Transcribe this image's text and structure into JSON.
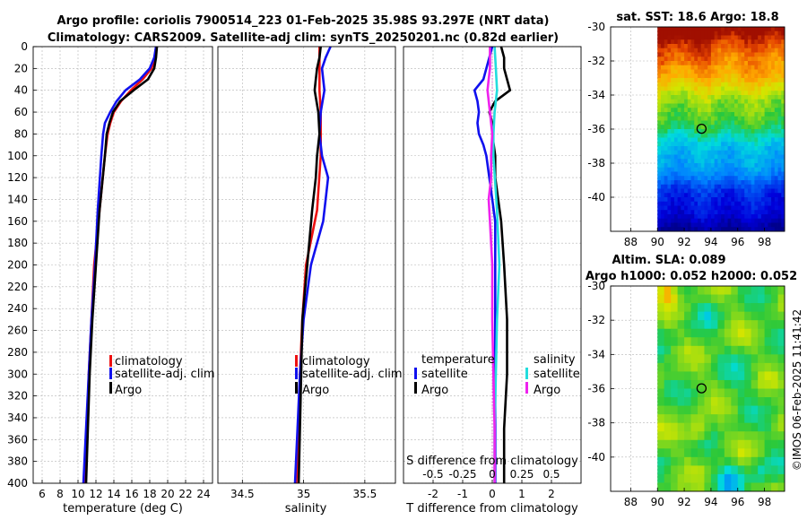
{
  "header": {
    "line1": "Argo profile: coriolis 7900514_223 01-Feb-2025 35.98S 93.297E (NRT data)",
    "line2": "Climatology: CARS2009. Satellite-adj clim: synTS_20250201.nc (0.82d earlier)"
  },
  "colors": {
    "climatology": "#ee1111",
    "satellite": "#1010ee",
    "argo": "#000000",
    "sal_satellite": "#22dddd",
    "sal_argo": "#ee22ee"
  },
  "chart_data": [
    {
      "id": "temperature",
      "type": "line",
      "xlabel": "temperature (deg C)",
      "ylabel": "",
      "xlim": [
        5,
        25
      ],
      "ylim": [
        400,
        0
      ],
      "x_ticks": [
        "6",
        "8",
        "10",
        "12",
        "14",
        "16",
        "18",
        "20",
        "22",
        "24"
      ],
      "y_ticks": [
        "0",
        "20",
        "40",
        "60",
        "80",
        "100",
        "120",
        "140",
        "160",
        "180",
        "200",
        "220",
        "240",
        "260",
        "280",
        "300",
        "320",
        "340",
        "360",
        "380",
        "400"
      ],
      "series": [
        {
          "name": "climatology",
          "color": "#ee1111",
          "depth": [
            0,
            10,
            20,
            30,
            40,
            50,
            60,
            70,
            80,
            100,
            150,
            200,
            250,
            300,
            350,
            400
          ],
          "values": [
            18.8,
            18.6,
            18.2,
            17.2,
            15.9,
            14.8,
            14.0,
            13.6,
            13.3,
            13.0,
            12.4,
            11.8,
            11.5,
            11.2,
            11.0,
            10.8
          ]
        },
        {
          "name": "satellite-adj. clim",
          "color": "#1010ee",
          "depth": [
            0,
            10,
            20,
            30,
            40,
            50,
            60,
            70,
            80,
            100,
            150,
            200,
            250,
            300,
            350,
            400
          ],
          "values": [
            18.7,
            18.5,
            18.0,
            16.9,
            15.3,
            14.3,
            13.6,
            13.0,
            12.8,
            12.6,
            12.2,
            11.9,
            11.5,
            11.2,
            10.9,
            10.6
          ]
        },
        {
          "name": "Argo",
          "color": "#000000",
          "depth": [
            0,
            10,
            20,
            30,
            40,
            50,
            60,
            70,
            80,
            100,
            150,
            200,
            250,
            300,
            350,
            400
          ],
          "values": [
            18.8,
            18.7,
            18.5,
            17.8,
            16.2,
            14.7,
            13.9,
            13.5,
            13.2,
            13.0,
            12.4,
            12.0,
            11.6,
            11.3,
            11.1,
            10.9
          ]
        }
      ],
      "legend": [
        "climatology",
        "satellite-adj. clim",
        "Argo"
      ]
    },
    {
      "id": "salinity",
      "type": "line",
      "xlabel": "salinity",
      "ylabel": "",
      "xlim": [
        34.3,
        35.75
      ],
      "ylim": [
        400,
        0
      ],
      "x_ticks": [
        "34.5",
        "35",
        "35.5"
      ],
      "series": [
        {
          "name": "climatology",
          "color": "#ee1111",
          "depth": [
            0,
            20,
            40,
            60,
            80,
            100,
            150,
            200,
            250,
            300,
            350,
            400
          ],
          "values": [
            35.13,
            35.13,
            35.13,
            35.14,
            35.14,
            35.14,
            35.11,
            35.02,
            34.99,
            34.97,
            34.96,
            34.94
          ]
        },
        {
          "name": "satellite-adj. clim",
          "color": "#1010ee",
          "depth": [
            0,
            10,
            20,
            40,
            60,
            80,
            100,
            120,
            140,
            160,
            200,
            250,
            300,
            350,
            400
          ],
          "values": [
            35.22,
            35.18,
            35.15,
            35.17,
            35.14,
            35.13,
            35.15,
            35.2,
            35.18,
            35.16,
            35.06,
            35.0,
            34.97,
            34.95,
            34.93
          ]
        },
        {
          "name": "Argo",
          "color": "#000000",
          "depth": [
            0,
            10,
            20,
            30,
            40,
            60,
            80,
            100,
            120,
            150,
            200,
            250,
            300,
            350,
            400
          ],
          "values": [
            35.14,
            35.13,
            35.11,
            35.1,
            35.09,
            35.12,
            35.13,
            35.11,
            35.1,
            35.07,
            35.03,
            34.99,
            34.98,
            34.97,
            34.96
          ]
        }
      ],
      "legend": [
        "climatology",
        "satellite-adj. clim",
        "Argo"
      ]
    },
    {
      "id": "differences",
      "type": "line",
      "xlabel": "T difference from climatology",
      "top_label": "S difference from climatology",
      "xlim": [
        -3,
        3
      ],
      "ylim": [
        400,
        0
      ],
      "x_ticks": [
        "-2",
        "-1",
        "0",
        "1",
        "2"
      ],
      "top_ticks": [
        "-0.5",
        "-0.25",
        "0",
        "0.25",
        "0.5"
      ],
      "series": [
        {
          "name": "T satellite",
          "color": "#1010ee",
          "depth": [
            0,
            10,
            20,
            30,
            40,
            50,
            60,
            70,
            80,
            90,
            100,
            120,
            140,
            160,
            200,
            250,
            300,
            350,
            400
          ],
          "values": [
            0.0,
            -0.1,
            -0.2,
            -0.3,
            -0.6,
            -0.5,
            -0.45,
            -0.5,
            -0.45,
            -0.3,
            -0.2,
            -0.1,
            0.0,
            0.1,
            0.1,
            0.1,
            0.1,
            0.1,
            0.1
          ]
        },
        {
          "name": "T Argo",
          "color": "#000000",
          "depth": [
            0,
            10,
            20,
            30,
            40,
            50,
            60,
            70,
            80,
            100,
            120,
            140,
            160,
            200,
            250,
            300,
            350,
            400
          ],
          "values": [
            0.3,
            0.4,
            0.4,
            0.5,
            0.6,
            0.1,
            -0.1,
            0.0,
            0.0,
            0.1,
            0.1,
            0.2,
            0.3,
            0.4,
            0.5,
            0.5,
            0.4,
            0.4
          ]
        },
        {
          "name": "S satellite",
          "color": "#22dddd",
          "depth": [
            0,
            20,
            40,
            60,
            80,
            100,
            150,
            200,
            250,
            300,
            350,
            400
          ],
          "values": [
            0.02,
            0.03,
            0.04,
            0.02,
            0.01,
            0.01,
            0.04,
            0.06,
            0.04,
            0.03,
            0.02,
            0.02
          ]
        },
        {
          "name": "S Argo",
          "color": "#ee22ee",
          "depth": [
            0,
            20,
            30,
            40,
            60,
            80,
            100,
            120,
            140,
            160,
            200,
            250,
            300,
            350,
            400
          ],
          "values": [
            -0.02,
            -0.02,
            -0.03,
            -0.04,
            -0.02,
            0.0,
            -0.01,
            -0.01,
            -0.03,
            -0.02,
            0.0,
            0.0,
            0.01,
            0.02,
            0.02
          ]
        }
      ],
      "legend_left_title": "temperature",
      "legend_right_title": "salinity",
      "legend_left": [
        "satellite",
        "Argo"
      ],
      "legend_right": [
        "satellite",
        "Argo"
      ]
    },
    {
      "id": "sst_map",
      "type": "heatmap",
      "title": "sat. SST: 18.6 Argo: 18.8",
      "xlim": [
        86.5,
        99.5
      ],
      "ylim": [
        -42,
        -30
      ],
      "x_ticks": [
        "88",
        "90",
        "92",
        "94",
        "96",
        "98"
      ],
      "y_ticks": [
        "-30",
        "-32",
        "-34",
        "-36",
        "-38",
        "-40"
      ],
      "argo_position": {
        "lon": 93.297,
        "lat": -35.98
      },
      "data_lon_range": [
        90,
        99.5
      ]
    },
    {
      "id": "sla_map",
      "type": "heatmap",
      "title": "Altim. SLA: 0.089",
      "subtitle": "Argo h1000: 0.052 h2000: 0.052",
      "xlim": [
        86.5,
        99.5
      ],
      "ylim": [
        -42,
        -30
      ],
      "x_ticks": [
        "88",
        "90",
        "92",
        "94",
        "96",
        "98"
      ],
      "y_ticks": [
        "-30",
        "-32",
        "-34",
        "-36",
        "-38",
        "-40"
      ],
      "argo_position": {
        "lon": 93.297,
        "lat": -35.98
      },
      "data_lon_range": [
        90,
        99.5
      ]
    }
  ],
  "credit": "©IMOS 06-Feb-2025 11:41:42"
}
